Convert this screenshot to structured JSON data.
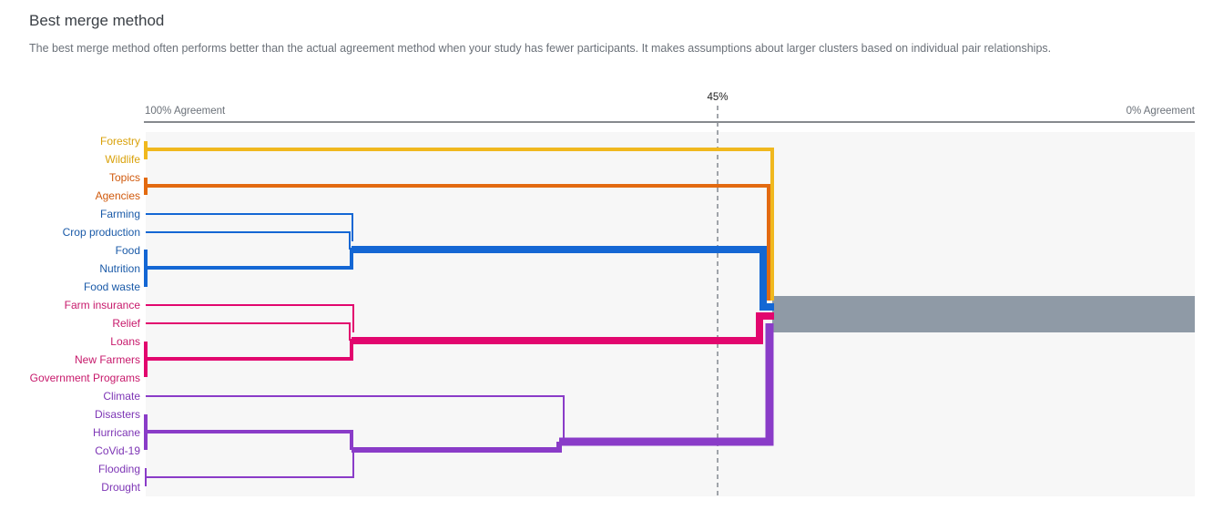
{
  "header": {
    "title": "Best merge method",
    "description": "The best merge method often performs better than the actual agreement method when your study has fewer participants. It makes assumptions about larger clusters based on individual pair relationships."
  },
  "axis": {
    "left_label": "100% Agreement",
    "right_label": "0% Agreement",
    "threshold_label": "45%",
    "threshold_value": 45
  },
  "colors": {
    "yellow": "#f0b81e",
    "orange": "#e36a10",
    "blue": "#1467d4",
    "pink": "#e2066e",
    "purple": "#8a3cc8",
    "gray": "#8f9aa6",
    "label_yellow": "#d9a10a",
    "label_orange": "#d0590c",
    "label_blue": "#1a5aa8",
    "label_pink": "#c7196b",
    "label_purple": "#7d35b5"
  },
  "clusters": [
    {
      "color": "yellow",
      "items": [
        "Forestry",
        "Wildlife"
      ]
    },
    {
      "color": "orange",
      "items": [
        "Topics",
        "Agencies"
      ]
    },
    {
      "color": "blue",
      "items": [
        "Farming",
        "Crop production",
        "Food",
        "Nutrition",
        "Food waste"
      ]
    },
    {
      "color": "pink",
      "items": [
        "Farm insurance",
        "Relief",
        "Loans",
        "New Farmers",
        "Government Programs"
      ]
    },
    {
      "color": "purple",
      "items": [
        "Climate",
        "Disasters",
        "Hurricane",
        "CoVid-19",
        "Flooding",
        "Drought"
      ]
    }
  ]
}
